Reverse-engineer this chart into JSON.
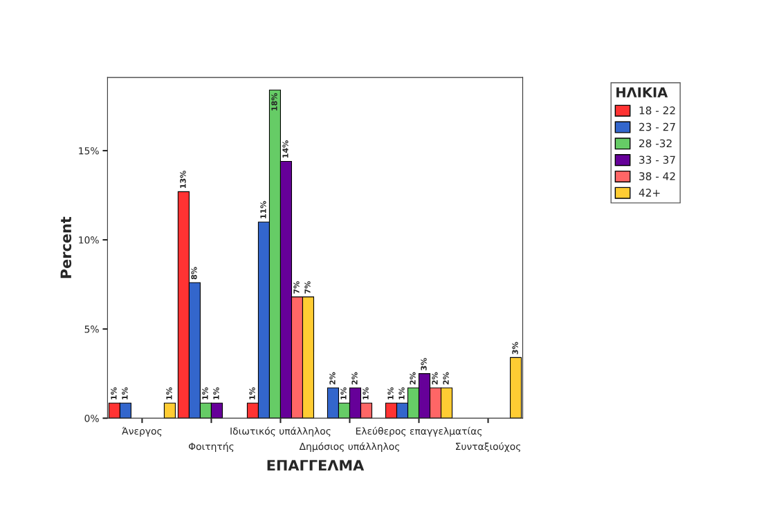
{
  "chart_data": {
    "type": "bar",
    "xlabel": "ΕΠΑΓΓΕΛΜΑ",
    "ylabel": "Percent",
    "legend_title": "ΗΛΙΚΙΑ",
    "legend": "top right",
    "categories": [
      "Άνεργος",
      "Φοιτητής",
      "Ιδιωτικός υπάλληλος",
      "Δημόσιος υπάλληλος",
      "Ελεύθερος επαγγελματίας",
      "Συνταξιούχος"
    ],
    "ylim": [
      0,
      19.1
    ],
    "yticks": [
      {
        "value": 0,
        "label": "0%"
      },
      {
        "value": 5,
        "label": "5%"
      },
      {
        "value": 10,
        "label": "10%"
      },
      {
        "value": 15,
        "label": "15%"
      }
    ],
    "series": [
      {
        "name": "18 - 22",
        "color": "#ff3333",
        "values": [
          0.85,
          12.7,
          0.85,
          null,
          0.85,
          null
        ],
        "value_labels": [
          "1%",
          "13%",
          "1%",
          null,
          "1%",
          null
        ]
      },
      {
        "name": "23 - 27",
        "color": "#3366cc",
        "values": [
          0.85,
          7.6,
          11.0,
          1.7,
          0.85,
          null
        ],
        "value_labels": [
          "1%",
          "8%",
          "11%",
          "2%",
          "1%",
          null
        ]
      },
      {
        "name": "28 -32",
        "color": "#66cc66",
        "values": [
          null,
          0.85,
          18.4,
          0.85,
          1.7,
          null
        ],
        "value_labels": [
          null,
          "1%",
          "18%",
          "1%",
          "2%",
          null
        ]
      },
      {
        "name": "33 - 37",
        "color": "#660099",
        "values": [
          null,
          0.85,
          14.4,
          1.7,
          2.5,
          null
        ],
        "value_labels": [
          null,
          "1%",
          "14%",
          "2%",
          "3%",
          null
        ]
      },
      {
        "name": "38 - 42",
        "color": "#ff6666",
        "values": [
          null,
          null,
          6.8,
          0.85,
          1.7,
          null
        ],
        "value_labels": [
          null,
          null,
          "7%",
          "1%",
          "2%",
          null
        ]
      },
      {
        "name": "42+",
        "color": "#ffcc33",
        "values": [
          0.85,
          null,
          6.8,
          null,
          1.7,
          3.4
        ],
        "value_labels": [
          "1%",
          null,
          "7%",
          null,
          "2%",
          "3%"
        ]
      }
    ]
  }
}
